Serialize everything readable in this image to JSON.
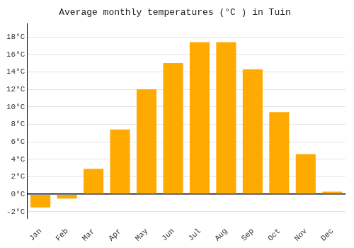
{
  "chart_data": {
    "type": "bar",
    "title": "Average monthly temperatures (°C ) in Tuin",
    "categories": [
      "Jan",
      "Feb",
      "Mar",
      "Apr",
      "May",
      "Jun",
      "Jul",
      "Aug",
      "Sep",
      "Oct",
      "Nov",
      "Dec"
    ],
    "values": [
      -1.5,
      -0.5,
      2.9,
      7.4,
      12.0,
      15.0,
      17.4,
      17.4,
      14.3,
      9.4,
      4.6,
      0.3
    ],
    "color": "#FFAA00",
    "ylim": [
      -2.8,
      19.5
    ],
    "yticks": [
      {
        "value": -2,
        "label": "-2°C"
      },
      {
        "value": 0,
        "label": "0°C"
      },
      {
        "value": 2,
        "label": "2°C"
      },
      {
        "value": 4,
        "label": "4°C"
      },
      {
        "value": 6,
        "label": "6°C"
      },
      {
        "value": 8,
        "label": "8°C"
      },
      {
        "value": 10,
        "label": "10°C"
      },
      {
        "value": 12,
        "label": "12°C"
      },
      {
        "value": 14,
        "label": "14°C"
      },
      {
        "value": 16,
        "label": "16°C"
      },
      {
        "value": 18,
        "label": "18°C"
      }
    ],
    "grid": true
  }
}
